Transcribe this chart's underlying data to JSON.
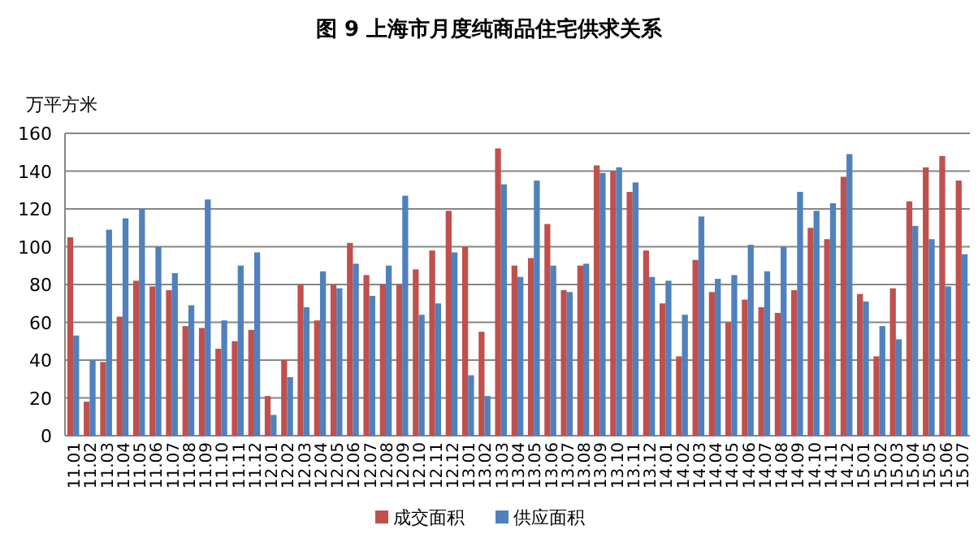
{
  "chart_data": {
    "type": "bar",
    "title": "图 9 上海市月度纯商品住宅供求关系",
    "ylabel": "万平方米",
    "categories": [
      "11.01",
      "11.02",
      "11.03",
      "11.04",
      "11.05",
      "11.06",
      "11.07",
      "11.08",
      "11.09",
      "11.10",
      "11.11",
      "11.12",
      "12.01",
      "12.02",
      "12.03",
      "12.04",
      "12.05",
      "12.06",
      "12.07",
      "12.08",
      "12.09",
      "12.10",
      "12.11",
      "12.12",
      "13.01",
      "13.02",
      "13.03",
      "13.04",
      "13.05",
      "13.06",
      "13.07",
      "13.08",
      "13.09",
      "13.10",
      "13.11",
      "13.12",
      "14.01",
      "14.02",
      "14.03",
      "14.04",
      "14.05",
      "14.06",
      "14.07",
      "14.08",
      "14.09",
      "14.10",
      "14.11",
      "14.12",
      "15.01",
      "15.02",
      "15.03",
      "15.04",
      "15.05",
      "15.06",
      "15.07"
    ],
    "series": [
      {
        "name": "成交面积",
        "color": "#c0504d",
        "values": [
          105,
          18,
          39,
          63,
          82,
          79,
          77,
          58,
          57,
          46,
          50,
          56,
          21,
          40,
          80,
          61,
          80,
          102,
          85,
          80,
          80,
          88,
          98,
          119,
          100,
          55,
          152,
          90,
          94,
          112,
          77,
          90,
          143,
          140,
          129,
          98,
          70,
          42,
          93,
          76,
          60,
          72,
          68,
          65,
          77,
          110,
          104,
          137,
          75,
          42,
          78,
          124,
          142,
          148,
          135
        ]
      },
      {
        "name": "供应面积",
        "color": "#4f81bd",
        "values": [
          53,
          40,
          109,
          115,
          120,
          100,
          86,
          69,
          125,
          61,
          90,
          97,
          11,
          31,
          68,
          87,
          78,
          91,
          74,
          90,
          127,
          64,
          70,
          97,
          32,
          21,
          133,
          84,
          135,
          90,
          76,
          91,
          139,
          142,
          134,
          84,
          82,
          64,
          116,
          83,
          85,
          101,
          87,
          100,
          129,
          119,
          123,
          149,
          71,
          58,
          51,
          111,
          104,
          79,
          96
        ]
      }
    ],
    "ylim": [
      0,
      160
    ],
    "yticks": [
      0,
      20,
      40,
      60,
      80,
      100,
      120,
      140,
      160
    ],
    "grid": "y",
    "legend": "bottom"
  }
}
